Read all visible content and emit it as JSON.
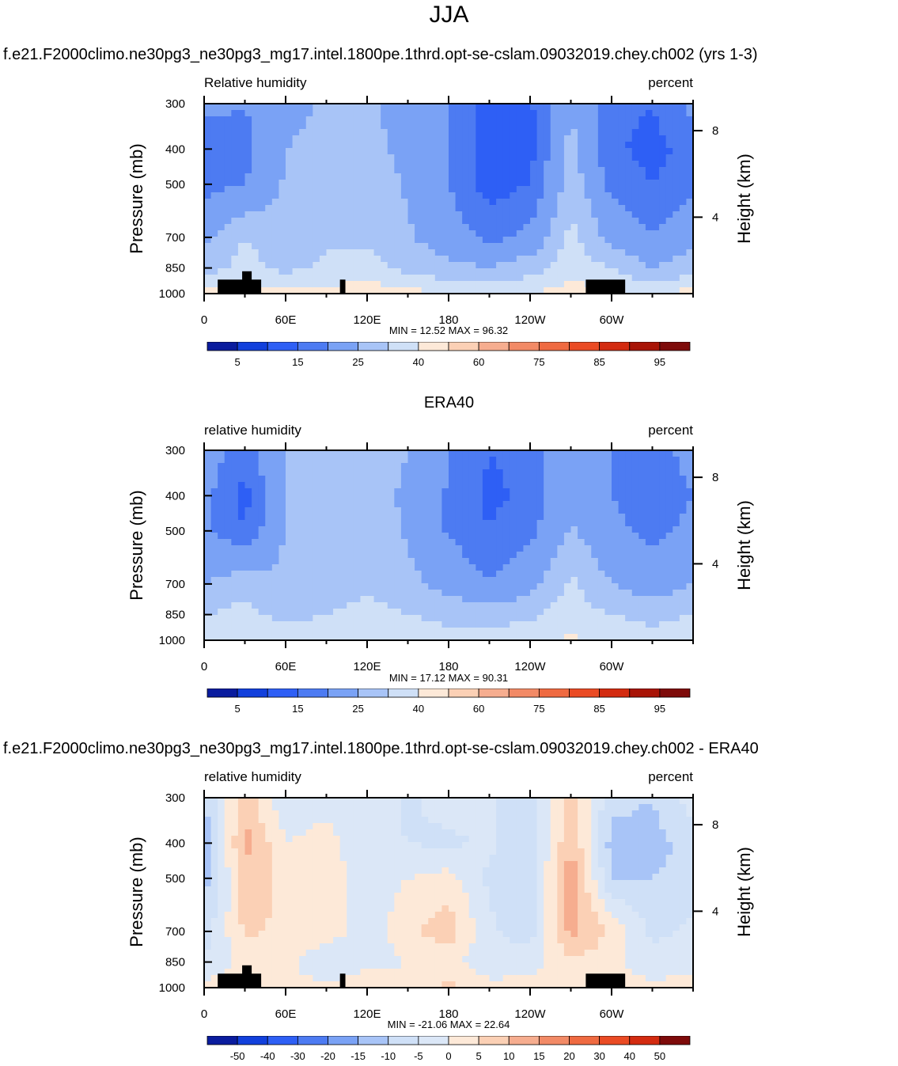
{
  "main_title": "JJA",
  "colorbar_levels_abs": [
    "5",
    "15",
    "25",
    "40",
    "60",
    "75",
    "85",
    "95"
  ],
  "colorbar_colors_abs": [
    "#0a1c9e",
    "#1240dc",
    "#2e5ff5",
    "#4d7bf2",
    "#7aa2f5",
    "#a8c4f7",
    "#cfe0f7",
    "#fde9d8",
    "#fbd0b5",
    "#f6ad8f",
    "#f28a66",
    "#ef6a41",
    "#ea4b24",
    "#d32b10",
    "#a81406",
    "#7e0b0a"
  ],
  "colorbar_levels_diff": [
    "-50",
    "-40",
    "-30",
    "-20",
    "-15",
    "-10",
    "-5",
    "0",
    "5",
    "10",
    "15",
    "20",
    "30",
    "40",
    "50"
  ],
  "colorbar_colors_diff": [
    "#0a1c9e",
    "#1240dc",
    "#2e5ff5",
    "#4d7bf2",
    "#7aa2f5",
    "#a8c4f7",
    "#cfe0f7",
    "#dbe7f7",
    "#fde9d8",
    "#fbd0b5",
    "#f6ad8f",
    "#f28a66",
    "#ef6a41",
    "#ea4b24",
    "#d32b10",
    "#7e0b0a"
  ],
  "chart_data": [
    {
      "type": "heatmap",
      "title": "f.e21.F2000climo.ne30pg3_ne30pg3_mg17.intel.1800pe.1thrd.opt-se-cslam.09032019.chey.ch002 (yrs 1-3)",
      "left_label": "Relative humidity",
      "right_label": "percent",
      "ylabel": "Pressure (mb)",
      "y2label": "Height (km)",
      "x_ticks": [
        "0",
        "60E",
        "120E",
        "180",
        "120W",
        "60W"
      ],
      "y_ticks": [
        "300",
        "400",
        "500",
        "700",
        "850",
        "1000"
      ],
      "y2_ticks": [
        "8",
        "4"
      ],
      "stats": "MIN =  12.52  MAX =  96.32",
      "min": 12.52,
      "max": 96.32,
      "colorbar": "abs",
      "field": {
        "lon": [
          0,
          30,
          60,
          90,
          120,
          150,
          180,
          210,
          240,
          270,
          300,
          330,
          360
        ],
        "plev": [
          300,
          400,
          500,
          700,
          850,
          1000
        ],
        "values": [
          [
            45,
            40,
            55,
            62,
            62,
            55,
            40,
            20,
            22,
            60,
            30,
            25,
            45
          ],
          [
            30,
            35,
            60,
            65,
            65,
            55,
            40,
            18,
            20,
            65,
            28,
            20,
            30
          ],
          [
            35,
            40,
            62,
            68,
            70,
            58,
            40,
            18,
            25,
            70,
            35,
            25,
            35
          ],
          [
            55,
            75,
            65,
            72,
            72,
            62,
            50,
            35,
            45,
            80,
            55,
            40,
            55
          ],
          [
            70,
            80,
            72,
            78,
            80,
            72,
            65,
            60,
            70,
            82,
            75,
            60,
            70
          ],
          [
            88,
            85,
            88,
            88,
            90,
            88,
            86,
            85,
            86,
            88,
            88,
            86,
            88
          ]
        ]
      }
    },
    {
      "type": "heatmap",
      "title": "ERA40",
      "left_label": "relative humidity",
      "right_label": "percent",
      "ylabel": "Pressure (mb)",
      "y2label": "Height (km)",
      "x_ticks": [
        "0",
        "60E",
        "120E",
        "180",
        "120W",
        "60W"
      ],
      "y_ticks": [
        "300",
        "400",
        "500",
        "700",
        "850",
        "1000"
      ],
      "y2_ticks": [
        "8",
        "4"
      ],
      "stats": "MIN =  17.12  MAX =  90.31",
      "min": 17.12,
      "max": 90.31,
      "colorbar": "abs",
      "field": {
        "lon": [
          0,
          30,
          60,
          90,
          120,
          150,
          180,
          210,
          240,
          270,
          300,
          330,
          360
        ],
        "plev": [
          300,
          400,
          500,
          700,
          850,
          1000
        ],
        "values": [
          [
            50,
            30,
            62,
            65,
            65,
            60,
            40,
            25,
            30,
            55,
            40,
            35,
            45
          ],
          [
            45,
            20,
            62,
            65,
            65,
            58,
            38,
            22,
            28,
            58,
            40,
            30,
            40
          ],
          [
            45,
            25,
            62,
            65,
            68,
            58,
            38,
            25,
            35,
            62,
            45,
            35,
            45
          ],
          [
            60,
            70,
            62,
            68,
            72,
            64,
            55,
            40,
            55,
            78,
            60,
            50,
            60
          ],
          [
            75,
            80,
            70,
            75,
            80,
            75,
            70,
            68,
            72,
            82,
            75,
            70,
            75
          ],
          [
            85,
            82,
            85,
            84,
            85,
            84,
            82,
            82,
            84,
            86,
            84,
            82,
            85
          ]
        ]
      }
    },
    {
      "type": "heatmap",
      "title": "f.e21.F2000climo.ne30pg3_ne30pg3_mg17.intel.1800pe.1thrd.opt-se-cslam.09032019.chey.ch002 - ERA40",
      "left_label": "relative humidity",
      "right_label": "percent",
      "ylabel": "Pressure (mb)",
      "y2label": "Height (km)",
      "x_ticks": [
        "0",
        "60E",
        "120E",
        "180",
        "120W",
        "60W"
      ],
      "y_ticks": [
        "300",
        "400",
        "500",
        "700",
        "850",
        "1000"
      ],
      "y2_ticks": [
        "8",
        "4"
      ],
      "stats": "MIN = -21.06  MAX =  22.64",
      "min": -21.06,
      "max": 22.64,
      "colorbar": "diff",
      "field": {
        "lon": [
          0,
          30,
          60,
          90,
          120,
          150,
          180,
          210,
          240,
          270,
          300,
          330,
          360
        ],
        "plev": [
          300,
          400,
          500,
          700,
          850,
          1000
        ],
        "values": [
          [
            -10,
            8,
            -4,
            -2,
            -2,
            -6,
            -3,
            -4,
            -8,
            6,
            -8,
            -10,
            -2
          ],
          [
            -15,
            12,
            0,
            2,
            -4,
            -5,
            -6,
            -4,
            -10,
            10,
            -12,
            -12,
            -8
          ],
          [
            -12,
            8,
            4,
            3,
            -3,
            0,
            2,
            -6,
            -8,
            14,
            -10,
            -10,
            -8
          ],
          [
            -8,
            6,
            4,
            4,
            -4,
            4,
            8,
            -4,
            -8,
            12,
            4,
            -6,
            -4
          ],
          [
            -4,
            2,
            2,
            -6,
            -2,
            0,
            2,
            -4,
            -2,
            4,
            2,
            -4,
            -2
          ],
          [
            2,
            2,
            1,
            2,
            4,
            2,
            6,
            2,
            2,
            2,
            2,
            2,
            2
          ]
        ]
      }
    }
  ]
}
